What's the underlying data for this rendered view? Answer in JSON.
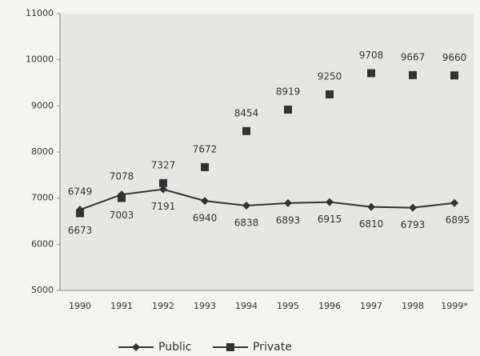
{
  "chart_data": {
    "type": "line",
    "categories": [
      "1990",
      "1991",
      "1992",
      "1993",
      "1994",
      "1995",
      "1996",
      "1997",
      "1998",
      "1999*"
    ],
    "series": [
      {
        "name": "Public",
        "color": "#333333",
        "marker": "diamond",
        "line": true,
        "values": [
          6749,
          7078,
          7191,
          6940,
          6838,
          6893,
          6915,
          6810,
          6793,
          6895
        ]
      },
      {
        "name": "Private",
        "color": "#333333",
        "marker": "square",
        "line": false,
        "values": [
          6673,
          7003,
          7327,
          7672,
          8454,
          8919,
          9250,
          9708,
          9667,
          9660
        ]
      }
    ],
    "ylim": [
      5000,
      11000
    ],
    "yticks": [
      5000,
      6000,
      7000,
      8000,
      9000,
      10000,
      11000
    ],
    "legend": "bottom"
  }
}
